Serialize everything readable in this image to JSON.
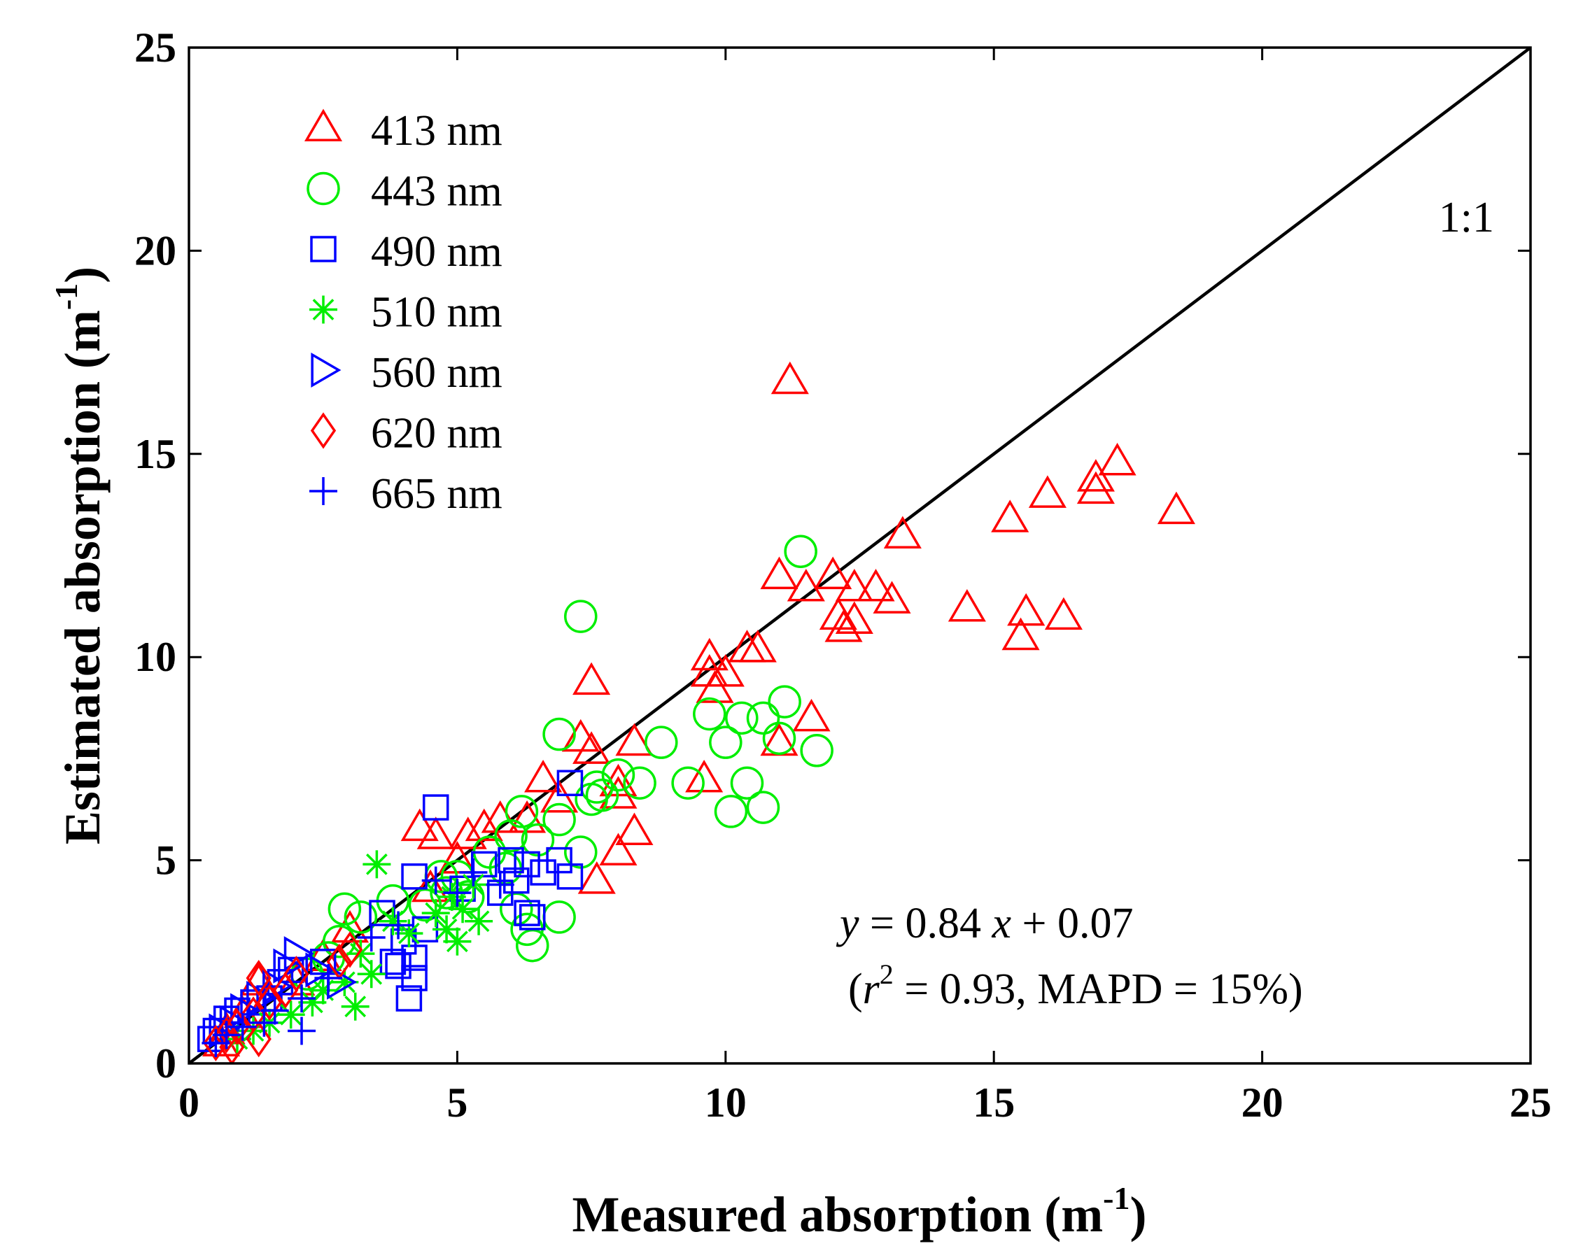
{
  "chart_data": {
    "type": "scatter",
    "xlabel": "Measured absorption (m",
    "xlabel_sup": "-1",
    "xlabel_end": ")",
    "ylabel": "Estimated absorption (m",
    "ylabel_sup": "-1",
    "ylabel_end": ")",
    "xlim": [
      0,
      25
    ],
    "ylim": [
      0,
      25
    ],
    "xticks": [
      "0",
      "5",
      "10",
      "15",
      "20",
      "25"
    ],
    "yticks": [
      "0",
      "5",
      "10",
      "15",
      "20",
      "25"
    ],
    "grid": false,
    "legend_position": "top-left",
    "reference_line": {
      "label": "1:1",
      "from": [
        0,
        0
      ],
      "to": [
        25,
        25
      ]
    },
    "annotation": {
      "eq_y": "y",
      "eq_rest": " = 0.84 ",
      "eq_x": "x",
      "eq_end": " + 0.07",
      "stats_open": "(",
      "stats_r": "r",
      "stats_sup": "2",
      "stats_end": " = 0.93, MAPD = 15%)"
    },
    "series": [
      {
        "name": "413 nm",
        "marker": "triangle-up",
        "color": "#ff0000",
        "points": [
          [
            11.2,
            16.8
          ],
          [
            17.3,
            14.8
          ],
          [
            16.9,
            14.4
          ],
          [
            16.9,
            14.1
          ],
          [
            16.0,
            14.0
          ],
          [
            18.4,
            13.6
          ],
          [
            15.3,
            13.4
          ],
          [
            13.3,
            13.0
          ],
          [
            11.0,
            12.0
          ],
          [
            12.0,
            12.0
          ],
          [
            11.5,
            11.7
          ],
          [
            12.4,
            11.7
          ],
          [
            12.8,
            11.7
          ],
          [
            13.1,
            11.4
          ],
          [
            12.1,
            11.0
          ],
          [
            12.4,
            10.9
          ],
          [
            12.2,
            10.7
          ],
          [
            14.5,
            11.2
          ],
          [
            15.6,
            11.1
          ],
          [
            16.3,
            11.0
          ],
          [
            15.5,
            10.5
          ],
          [
            9.7,
            10.0
          ],
          [
            10.4,
            10.2
          ],
          [
            10.6,
            10.2
          ],
          [
            9.7,
            9.6
          ],
          [
            10.0,
            9.6
          ],
          [
            9.8,
            9.2
          ],
          [
            7.5,
            9.4
          ],
          [
            11.6,
            8.5
          ],
          [
            11.0,
            7.9
          ],
          [
            7.3,
            8.0
          ],
          [
            7.5,
            7.7
          ],
          [
            8.3,
            7.9
          ],
          [
            9.6,
            7.0
          ],
          [
            8.0,
            6.9
          ],
          [
            8.0,
            6.6
          ],
          [
            8.3,
            5.7
          ],
          [
            8.0,
            5.2
          ],
          [
            7.6,
            4.5
          ],
          [
            4.3,
            5.8
          ],
          [
            4.6,
            5.6
          ],
          [
            5.2,
            5.6
          ],
          [
            5.5,
            5.8
          ],
          [
            5.8,
            6.0
          ],
          [
            6.6,
            7.0
          ],
          [
            6.9,
            6.5
          ],
          [
            6.3,
            6.0
          ],
          [
            5.0,
            5.0
          ],
          [
            4.5,
            4.3
          ],
          [
            3.0,
            3.3
          ],
          [
            2.5,
            2.6
          ],
          [
            2.0,
            2.0
          ],
          [
            1.3,
            2.0
          ],
          [
            1.5,
            1.6
          ],
          [
            1.0,
            1.2
          ],
          [
            0.7,
            0.8
          ],
          [
            0.6,
            0.5
          ]
        ]
      },
      {
        "name": "443 nm",
        "marker": "circle",
        "color": "#00ee00",
        "points": [
          [
            11.4,
            12.6
          ],
          [
            7.3,
            11.0
          ],
          [
            6.9,
            8.1
          ],
          [
            8.8,
            7.9
          ],
          [
            9.7,
            8.6
          ],
          [
            10.3,
            8.5
          ],
          [
            10.7,
            8.5
          ],
          [
            11.1,
            8.9
          ],
          [
            10.0,
            7.9
          ],
          [
            11.0,
            8.0
          ],
          [
            11.7,
            7.7
          ],
          [
            9.3,
            6.9
          ],
          [
            10.4,
            6.9
          ],
          [
            10.1,
            6.2
          ],
          [
            10.7,
            6.3
          ],
          [
            8.4,
            6.9
          ],
          [
            8.0,
            7.1
          ],
          [
            7.7,
            6.6
          ],
          [
            7.5,
            6.5
          ],
          [
            7.6,
            6.8
          ],
          [
            7.3,
            5.2
          ],
          [
            6.0,
            5.6
          ],
          [
            6.2,
            6.2
          ],
          [
            6.9,
            6.0
          ],
          [
            6.5,
            5.5
          ],
          [
            5.6,
            5.2
          ],
          [
            5.9,
            4.8
          ],
          [
            6.1,
            3.8
          ],
          [
            6.3,
            3.3
          ],
          [
            6.9,
            3.6
          ],
          [
            6.4,
            2.9
          ],
          [
            5.0,
            4.6
          ],
          [
            4.7,
            4.6
          ],
          [
            4.8,
            4.2
          ],
          [
            5.2,
            4.1
          ],
          [
            4.4,
            3.9
          ],
          [
            3.8,
            4.0
          ],
          [
            2.9,
            3.8
          ],
          [
            3.2,
            3.6
          ],
          [
            2.8,
            3.0
          ],
          [
            2.6,
            2.6
          ],
          [
            2.2,
            2.2
          ]
        ]
      },
      {
        "name": "490 nm",
        "marker": "square",
        "color": "#0000ff",
        "points": [
          [
            4.6,
            6.3
          ],
          [
            7.1,
            6.9
          ],
          [
            4.2,
            4.6
          ],
          [
            5.5,
            4.9
          ],
          [
            6.0,
            5.0
          ],
          [
            6.3,
            4.9
          ],
          [
            6.9,
            5.0
          ],
          [
            7.1,
            4.6
          ],
          [
            6.1,
            4.5
          ],
          [
            6.6,
            4.7
          ],
          [
            6.3,
            3.7
          ],
          [
            6.4,
            3.6
          ],
          [
            5.8,
            4.2
          ],
          [
            5.1,
            4.3
          ],
          [
            4.4,
            3.3
          ],
          [
            4.0,
            3.0
          ],
          [
            4.2,
            2.6
          ],
          [
            4.2,
            2.1
          ],
          [
            4.1,
            1.6
          ],
          [
            3.8,
            2.5
          ],
          [
            3.6,
            3.7
          ],
          [
            3.9,
            2.4
          ],
          [
            2.5,
            2.5
          ],
          [
            1.9,
            2.3
          ],
          [
            1.7,
            2.0
          ],
          [
            1.5,
            1.6
          ],
          [
            1.2,
            1.5
          ],
          [
            0.9,
            1.3
          ],
          [
            0.7,
            1.1
          ],
          [
            0.5,
            0.8
          ],
          [
            0.4,
            0.6
          ]
        ]
      },
      {
        "name": "510 nm",
        "marker": "asterisk",
        "color": "#00ee00",
        "points": [
          [
            3.5,
            4.9
          ],
          [
            5.3,
            4.4
          ],
          [
            4.9,
            4.1
          ],
          [
            5.1,
            3.8
          ],
          [
            4.6,
            3.7
          ],
          [
            4.8,
            3.3
          ],
          [
            5.0,
            3.0
          ],
          [
            5.4,
            3.5
          ],
          [
            4.1,
            3.2
          ],
          [
            3.8,
            3.5
          ],
          [
            3.2,
            2.7
          ],
          [
            3.4,
            2.2
          ],
          [
            3.1,
            1.4
          ],
          [
            2.9,
            2.0
          ],
          [
            2.5,
            1.8
          ],
          [
            2.3,
            1.5
          ],
          [
            1.9,
            1.2
          ],
          [
            1.5,
            1.0
          ],
          [
            1.2,
            0.8
          ],
          [
            0.9,
            0.6
          ]
        ]
      },
      {
        "name": "560 nm",
        "marker": "triangle-right",
        "color": "#0000ff",
        "points": [
          [
            2.0,
            2.7
          ],
          [
            1.8,
            2.4
          ],
          [
            2.4,
            2.3
          ],
          [
            2.8,
            2.0
          ],
          [
            1.6,
            1.9
          ],
          [
            1.3,
            1.6
          ],
          [
            1.0,
            1.3
          ],
          [
            0.8,
            1.0
          ],
          [
            0.6,
            0.8
          ]
        ]
      },
      {
        "name": "620 nm",
        "marker": "diamond",
        "color": "#ff0000",
        "points": [
          [
            3.0,
            2.8
          ],
          [
            2.8,
            2.5
          ],
          [
            2.0,
            2.2
          ],
          [
            1.3,
            2.1
          ],
          [
            1.8,
            1.8
          ],
          [
            1.5,
            1.5
          ],
          [
            1.2,
            1.2
          ],
          [
            0.9,
            0.9
          ],
          [
            0.7,
            0.7
          ],
          [
            1.3,
            0.6
          ],
          [
            0.5,
            0.5
          ],
          [
            0.8,
            0.4
          ]
        ]
      },
      {
        "name": "665 nm",
        "marker": "plus",
        "color": "#0000ff",
        "points": [
          [
            5.3,
            4.7
          ],
          [
            4.6,
            4.5
          ],
          [
            5.0,
            4.2
          ],
          [
            5.8,
            4.4
          ],
          [
            3.9,
            3.4
          ],
          [
            3.4,
            3.1
          ],
          [
            2.6,
            2.1
          ],
          [
            2.1,
            1.6
          ],
          [
            1.6,
            1.3
          ],
          [
            1.4,
            1.0
          ],
          [
            1.0,
            0.9
          ],
          [
            2.1,
            0.8
          ],
          [
            0.7,
            0.7
          ],
          [
            0.5,
            0.5
          ]
        ]
      }
    ]
  }
}
